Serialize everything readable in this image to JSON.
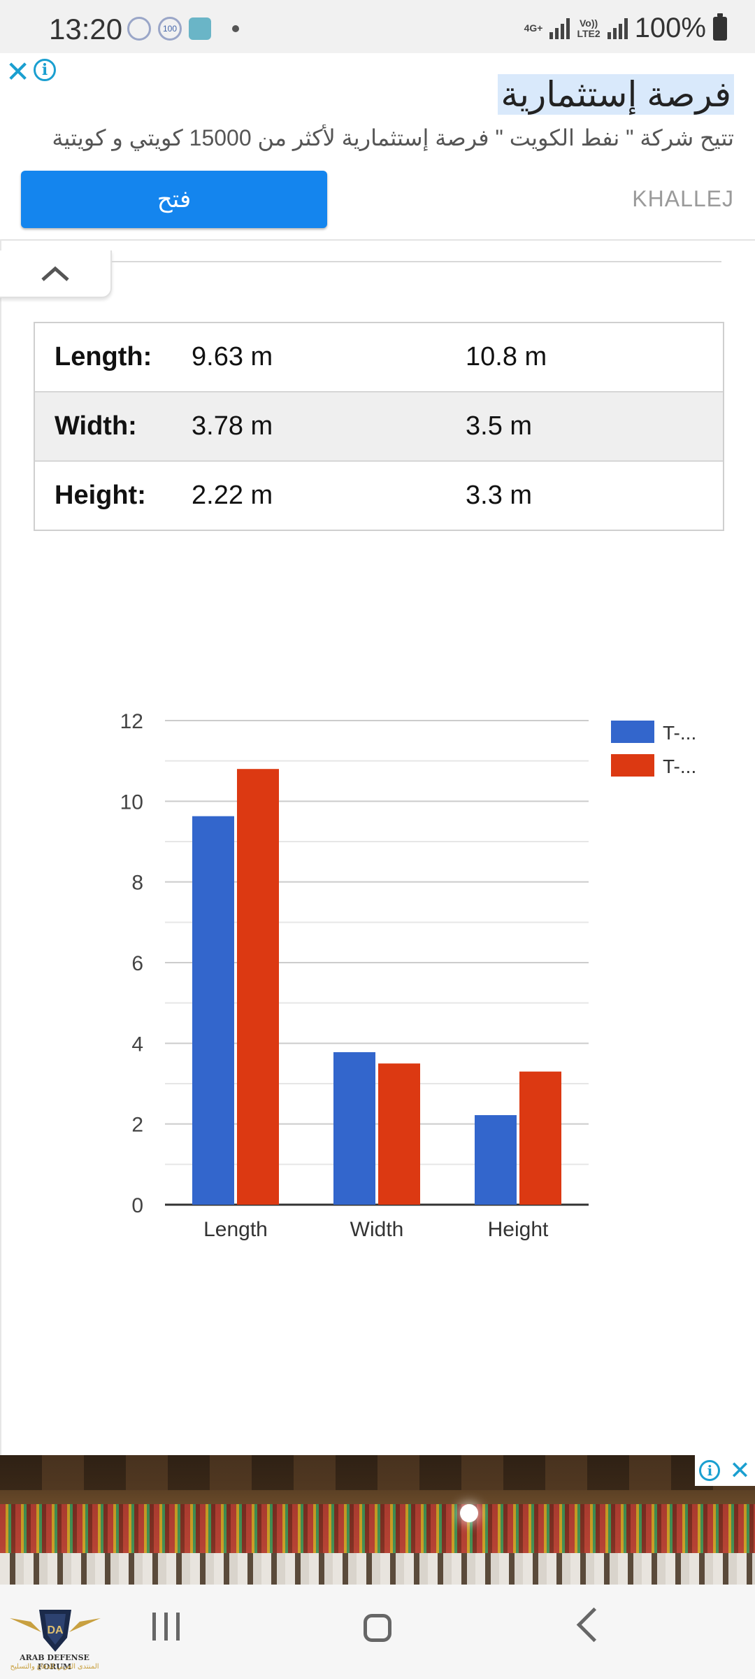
{
  "status_bar": {
    "time": "13:20",
    "badge_100": "100",
    "network_top": "4G+",
    "network_mid": "Vo))",
    "network_lte": "LTE2",
    "battery": "100%"
  },
  "ad_top": {
    "headline": "فرصة إستثمارية",
    "body": "تتيح شركة \" نفط الكويت \" فرصة إستثمارية لأكثر من 15000 كويتي و كويتية",
    "button_label": "فتح",
    "advertiser": "KHALLEJ",
    "close_icon": "close-icon",
    "info_icon": "info-icon",
    "accent_color": "#1485ee"
  },
  "table": {
    "rows": [
      {
        "label": "Length:",
        "v1": "9.63 m",
        "v2": "10.8 m"
      },
      {
        "label": "Width:",
        "v1": "3.78 m",
        "v2": "3.5 m"
      },
      {
        "label": "Height:",
        "v1": "2.22 m",
        "v2": "3.3 m"
      }
    ]
  },
  "chart_data": {
    "type": "bar",
    "categories": [
      "Length",
      "Width",
      "Height"
    ],
    "series": [
      {
        "name": "T-...",
        "color": "#3366cc",
        "values": [
          9.63,
          3.78,
          2.22
        ]
      },
      {
        "name": "T-...",
        "color": "#dc3912",
        "values": [
          10.8,
          3.5,
          3.3
        ]
      }
    ],
    "yticks": [
      0,
      2,
      4,
      6,
      8,
      10,
      12
    ],
    "ylim": [
      0,
      12
    ],
    "grid": true,
    "legend": "right"
  },
  "nav": {
    "logo_text": "ARAB DEFENSE FORUM",
    "logo_sub": "المنتدى العربي للدفاع والتسليح",
    "logo_mark": "DA"
  }
}
